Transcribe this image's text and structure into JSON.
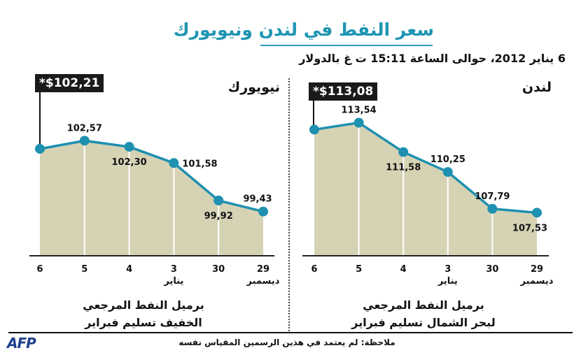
{
  "title": "سعر النفط في لندن ونيويورك",
  "subtitle": "6 يناير 2012، حوالى الساعة 15:11 ت غ بالدولار",
  "note": "ملاحظة: لم يعتمد في هذين الرسمين المقياس نفسه",
  "logo": "AFP",
  "colors": {
    "fill": "#d6d3b5",
    "line": "#1e90b0",
    "title": "#1f95b2"
  },
  "chart_data": [
    {
      "type": "area",
      "panel": "لندن",
      "callout": "*$113,08",
      "x": [
        "6",
        "5",
        "4",
        "3",
        "30",
        "29"
      ],
      "month_labels": {
        "3": "يناير",
        "29": "ديسمبر"
      },
      "values": [
        113.08,
        113.54,
        111.58,
        110.25,
        107.79,
        107.53
      ],
      "labels": [
        "",
        "113,54",
        "111,58",
        "110,25",
        "107,79",
        "107,53"
      ],
      "ylim": [
        104.7,
        116.6
      ],
      "description": [
        "برميل النفط المرجعي",
        "لبحر الشمال تسليم فبراير"
      ]
    },
    {
      "type": "area",
      "panel": "نيويورك",
      "callout": "*$102,21",
      "x": [
        "6",
        "5",
        "4",
        "3",
        "30",
        "29"
      ],
      "month_labels": {
        "3": "يناير",
        "29": "ديسمبر"
      },
      "values": [
        102.21,
        102.57,
        102.3,
        101.58,
        99.92,
        99.43
      ],
      "labels": [
        "",
        "102,57",
        "102,30",
        "101,58",
        "99,92",
        "99,43"
      ],
      "ylim": [
        97.5,
        105.4
      ],
      "description": [
        "برميل النفط المرجعي",
        "الخفيف تسليم فبراير"
      ]
    }
  ]
}
